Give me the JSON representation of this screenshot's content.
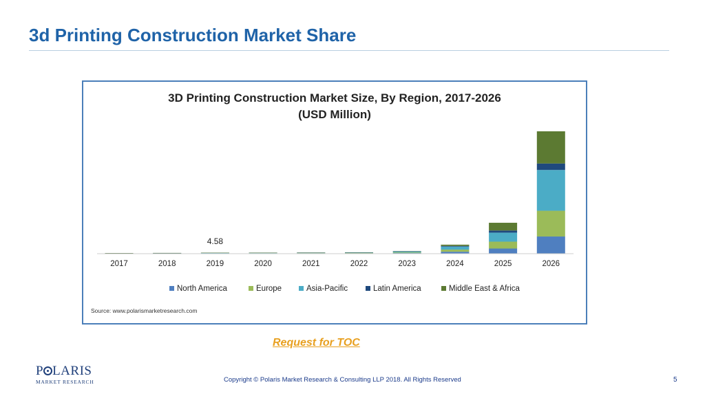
{
  "slide": {
    "title": "3d Printing Construction Market Share",
    "toc_link": "Request for TOC",
    "copyright": "Copyright © Polaris Market Research & Consulting LLP 2018. All Rights Reserved",
    "page_number": "5",
    "logo": {
      "main": "POLARIS",
      "sub": "MARKET RESEARCH"
    }
  },
  "colors": {
    "title": "#1f63a8",
    "frame": "#4a7eb9",
    "link": "#e8a020",
    "North America": "#4f7fc0",
    "Europe": "#9bbb59",
    "Asia-Pacific": "#4bacc6",
    "Latin America": "#1f497d",
    "Middle East & Africa": "#5c7a32"
  },
  "chart_data": {
    "type": "bar",
    "stacked": true,
    "title": "3D Printing Construction Market Size, By Region, 2017-2026",
    "subtitle": "(USD Million)",
    "categories": [
      "2017",
      "2018",
      "2019",
      "2020",
      "2021",
      "2022",
      "2023",
      "2024",
      "2025",
      "2026"
    ],
    "series": [
      {
        "name": "North America",
        "values": [
          0.8,
          0.9,
          1.2,
          1.3,
          1.4,
          1.5,
          3,
          9,
          24,
          80
        ]
      },
      {
        "name": "Europe",
        "values": [
          0.7,
          0.8,
          1.0,
          1.1,
          1.2,
          1.3,
          3,
          10,
          32,
          120
        ]
      },
      {
        "name": "Asia-Pacific",
        "values": [
          1.2,
          1.4,
          1.8,
          1.9,
          2.1,
          2.3,
          4,
          14,
          42,
          190
        ]
      },
      {
        "name": "Latin America",
        "values": [
          0.2,
          0.2,
          0.3,
          0.3,
          0.3,
          0.4,
          1,
          3,
          10,
          30
        ]
      },
      {
        "name": "Middle East & Africa",
        "values": [
          0.2,
          0.2,
          0.28,
          0.3,
          0.3,
          0.4,
          1,
          6,
          36,
          150
        ]
      }
    ],
    "annotations": [
      {
        "category": "2019",
        "text": "4.58"
      }
    ],
    "ylim": [
      0,
      570
    ],
    "grid": false,
    "legend": "bottom",
    "source": "Source: www.polarismarketresearch.com"
  }
}
